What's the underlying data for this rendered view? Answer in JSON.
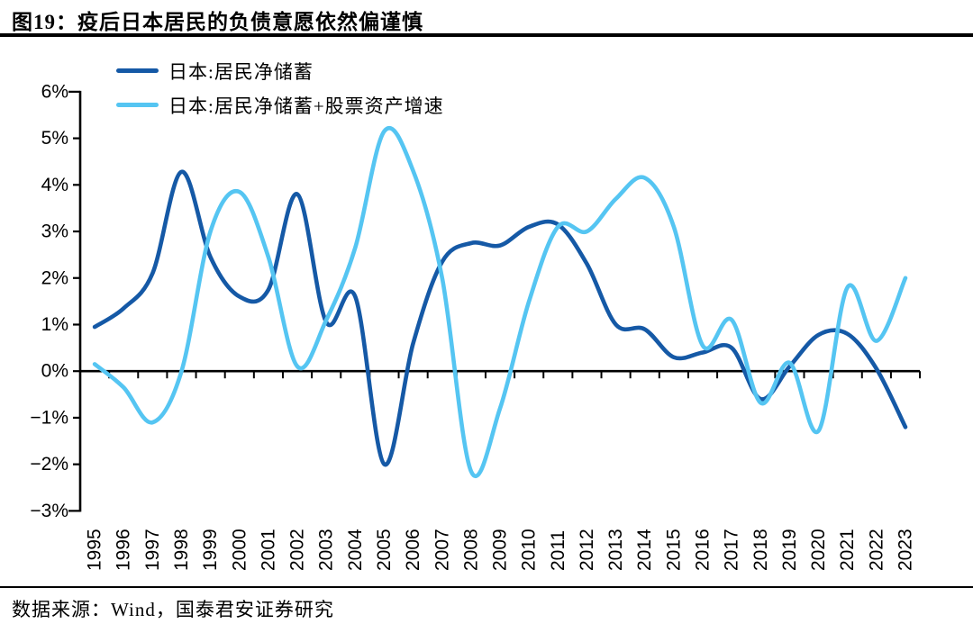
{
  "page": {
    "title": "图19：疫后日本居民的负债意愿依然偏谨慎",
    "source": "数据来源：Wind，国泰君安证券研究"
  },
  "chart_data": {
    "type": "line",
    "figure_label": "图19",
    "title": "疫后日本居民的负债意愿依然偏谨慎",
    "x": [
      "1995",
      "1996",
      "1997",
      "1998",
      "1999",
      "2000",
      "2001",
      "2002",
      "2003",
      "2004",
      "2005",
      "2006",
      "2007",
      "2008",
      "2009",
      "2010",
      "2011",
      "2012",
      "2013",
      "2014",
      "2015",
      "2016",
      "2017",
      "2018",
      "2019",
      "2020",
      "2021",
      "2022",
      "2023"
    ],
    "series": [
      {
        "key": "net-savings",
        "name": "日本:居民净储蓄",
        "color": "#1559A6",
        "values": [
          0.95,
          1.35,
          2.1,
          4.28,
          2.45,
          1.6,
          1.75,
          3.8,
          1.05,
          1.6,
          -2.0,
          0.6,
          2.35,
          2.75,
          2.7,
          3.1,
          3.15,
          2.3,
          1.0,
          0.9,
          0.3,
          0.4,
          0.5,
          -0.6,
          0.1,
          0.78,
          0.8,
          0.05,
          -1.2
        ]
      },
      {
        "key": "net-savings-plus-stock-growth",
        "name": "日本:居民净储蓄+股票资产增速",
        "color": "#55C5F2",
        "values": [
          0.15,
          -0.35,
          -1.1,
          0.0,
          3.0,
          3.85,
          2.45,
          0.1,
          1.1,
          2.65,
          5.15,
          4.3,
          2.0,
          -2.15,
          -0.8,
          1.5,
          3.1,
          3.0,
          3.7,
          4.15,
          3.1,
          0.55,
          1.1,
          -0.68,
          0.18,
          -1.28,
          1.8,
          0.65,
          2.0
        ]
      }
    ],
    "ylim": [
      -3,
      6
    ],
    "ytick_step": 1,
    "ytick_labels": [
      "6%",
      "5%",
      "4%",
      "3%",
      "2%",
      "1%",
      "0%",
      "−1%",
      "−2%",
      "−3%"
    ],
    "grid": false,
    "legend_position": "top-left",
    "axis_color": "#000000",
    "baseline": 0
  }
}
